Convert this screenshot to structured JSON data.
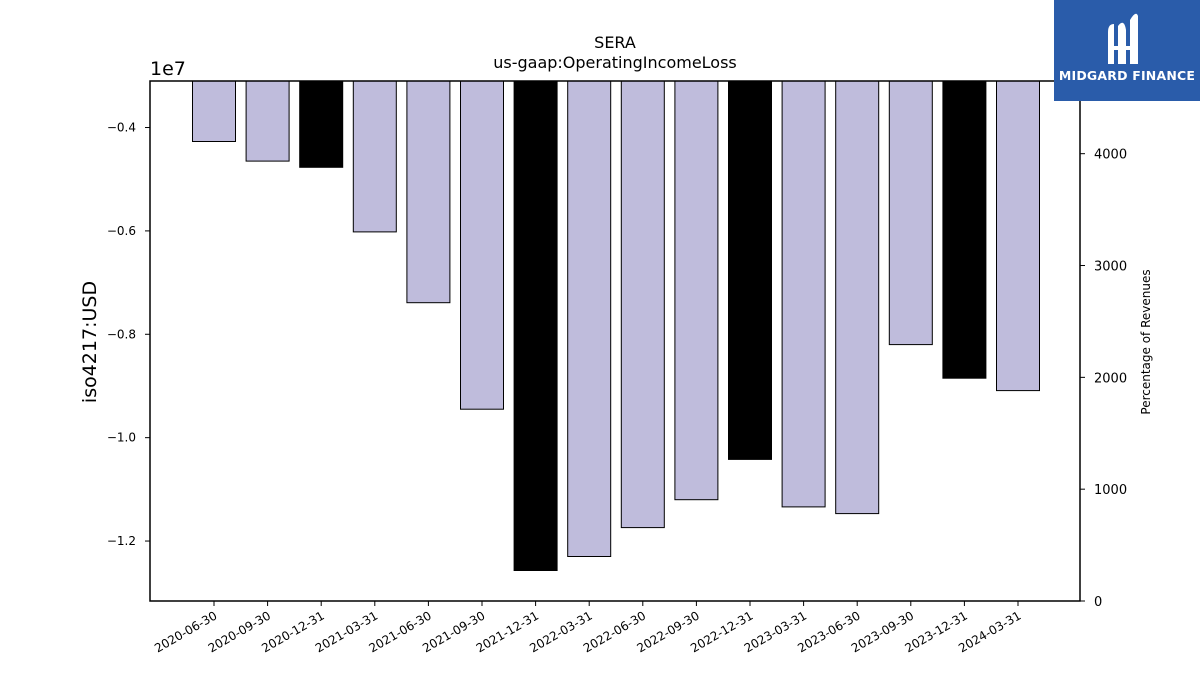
{
  "chart_data": {
    "type": "bar",
    "title": "SERA",
    "subtitle": "us-gaap:OperatingIncomeLoss",
    "ylabel": "iso4217:USD",
    "y_multiplier_label": "1e7",
    "y2label": "Percentage of Revenues",
    "categories": [
      "2020-06-30",
      "2020-09-30",
      "2020-12-31",
      "2021-03-31",
      "2021-06-30",
      "2021-09-30",
      "2021-12-31",
      "2022-03-31",
      "2022-06-30",
      "2022-09-30",
      "2022-12-31",
      "2023-03-31",
      "2023-06-30",
      "2023-09-30",
      "2023-12-31",
      "2024-03-31"
    ],
    "values": [
      -4270000,
      -4650000,
      -4770000,
      -6020000,
      -7390000,
      -9450000,
      -12570000,
      -12300000,
      -11740000,
      -11200000,
      -10420000,
      -11340000,
      -11470000,
      -8200000,
      -8850000,
      -9090000
    ],
    "bar_colors": [
      "#bfbcdc",
      "#bfbcdc",
      "#000000",
      "#bfbcdc",
      "#bfbcdc",
      "#bfbcdc",
      "#000000",
      "#bfbcdc",
      "#bfbcdc",
      "#bfbcdc",
      "#000000",
      "#bfbcdc",
      "#bfbcdc",
      "#bfbcdc",
      "#000000",
      "#bfbcdc"
    ],
    "ylim": [
      -13160000,
      -3100000
    ],
    "yticks": [
      -4000000,
      -6000000,
      -8000000,
      -10000000,
      -12000000
    ],
    "ytick_labels": [
      "−0.4",
      "−0.6",
      "−0.8",
      "−1.0",
      "−1.2"
    ],
    "y2lim": [
      0,
      4650
    ],
    "y2ticks": [
      0,
      1000,
      2000,
      3000,
      4000
    ],
    "y2tick_labels": [
      "0",
      "1000",
      "2000",
      "3000",
      "4000"
    ],
    "grid": false,
    "legend": "none"
  },
  "logo": {
    "text": "MIDGARD FINANCE",
    "color": "#2a5caa"
  }
}
